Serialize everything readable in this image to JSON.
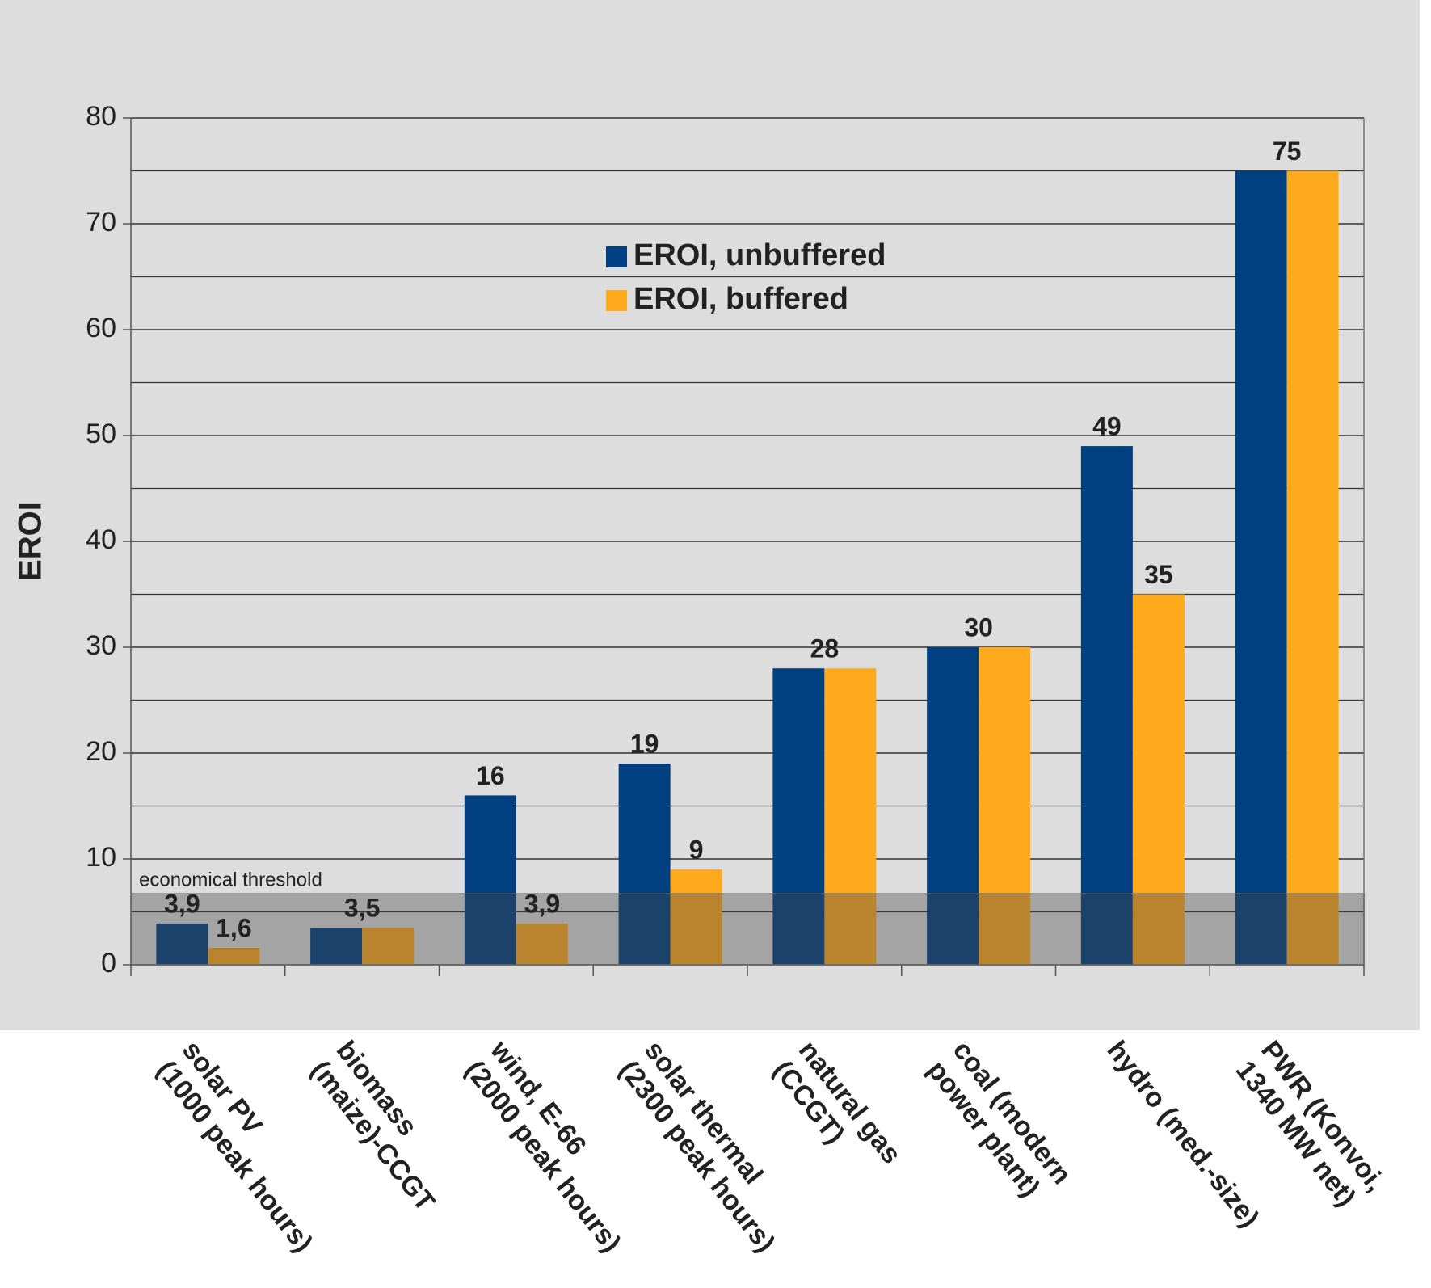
{
  "chart_data": {
    "type": "bar",
    "y_label": "EROI",
    "categories": [
      "solar PV\n(1000 peak hours)",
      "biomass\n(maize)-CCGT",
      "wind, E-66\n(2000 peak hours)",
      "solar thermal\n(2300 peak hours)",
      "natural gas\n(CCGT)",
      "coal (modern\npower plant)",
      "hydro (med.-size)",
      "PWR (Konvoi,\n1340 MW net)"
    ],
    "series": [
      {
        "name": "EROI, unbuffered",
        "color": "#003f80",
        "values": [
          3.9,
          3.5,
          16,
          19,
          28,
          30,
          49,
          75
        ],
        "value_labels": [
          "3,9",
          "3,5",
          "16",
          "19",
          "28",
          "30",
          "49",
          "75"
        ]
      },
      {
        "name": "EROI, buffered",
        "color": "#ffaa1d",
        "values": [
          1.6,
          3.5,
          3.9,
          9,
          28,
          30,
          35,
          75
        ],
        "value_labels": [
          "1,6",
          null,
          "3,9",
          "9",
          null,
          null,
          "35",
          null
        ]
      }
    ],
    "ylim": [
      0,
      80
    ],
    "yticks": [
      0,
      10,
      20,
      30,
      40,
      50,
      60,
      70,
      80
    ],
    "minor_yticks": [
      5,
      15,
      25,
      35,
      45,
      55,
      65,
      75
    ],
    "grid": true,
    "threshold": {
      "label": "economical threshold",
      "value": 6.7
    }
  }
}
